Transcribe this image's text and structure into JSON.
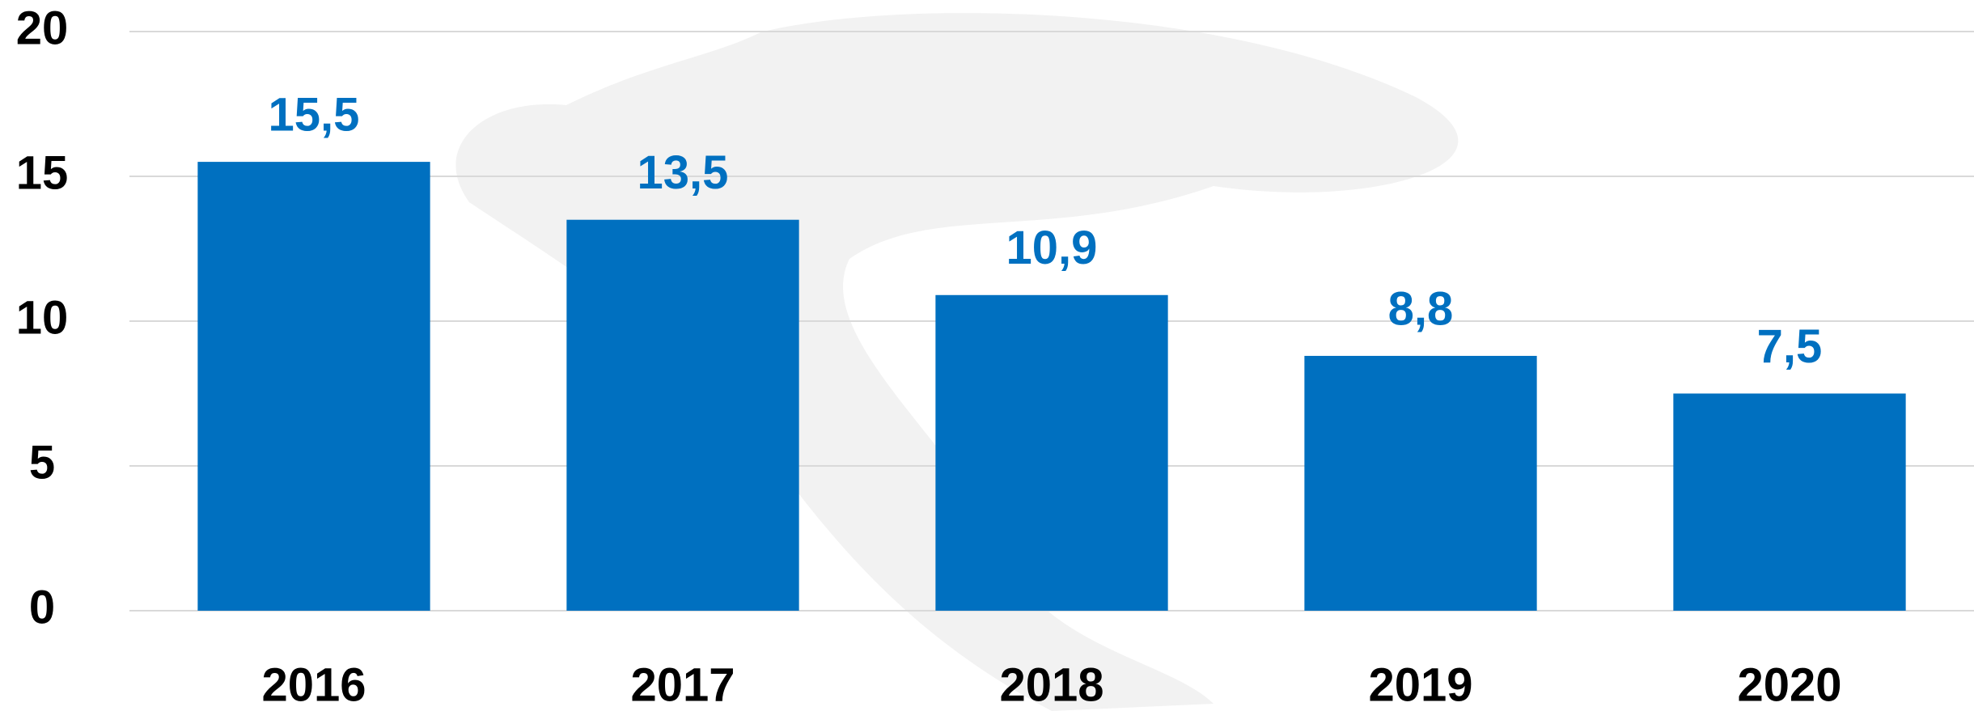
{
  "chart_data": {
    "type": "bar",
    "categories": [
      "2016",
      "2017",
      "2018",
      "2019",
      "2020"
    ],
    "values": [
      15.5,
      13.5,
      10.9,
      8.8,
      7.5
    ],
    "value_labels": [
      "15,5",
      "13,5",
      "10,9",
      "8,8",
      "7,5"
    ],
    "color": "#0070c0",
    "ylim": [
      0,
      20
    ],
    "yticks": [
      0,
      5,
      10,
      15,
      20
    ],
    "grid": true
  }
}
